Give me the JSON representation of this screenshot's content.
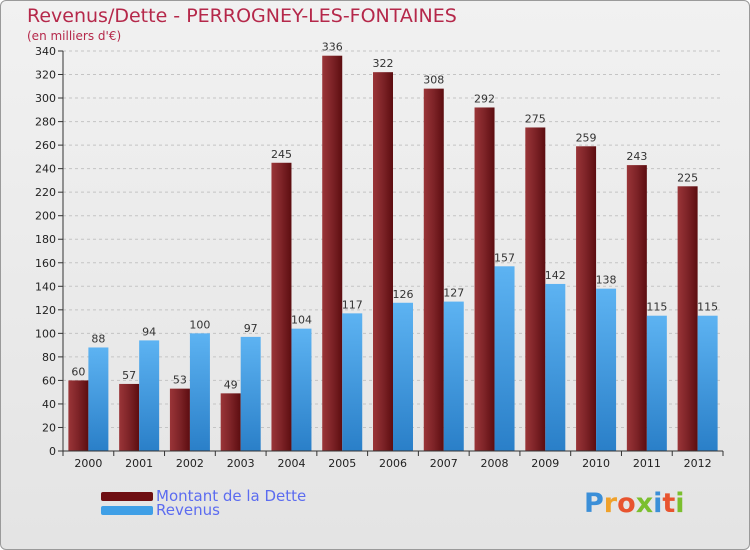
{
  "chart_data": {
    "type": "bar",
    "title": "Revenus/Dette - PERROGNEY-LES-FONTAINES",
    "subtitle": "(en milliers d'€)",
    "categories": [
      "2000",
      "2001",
      "2002",
      "2003",
      "2004",
      "2005",
      "2006",
      "2007",
      "2008",
      "2009",
      "2010",
      "2011",
      "2012"
    ],
    "series": [
      {
        "name": "Montant de la Dette",
        "color": "#7a1a1e",
        "values": [
          60,
          57,
          53,
          49,
          245,
          336,
          322,
          308,
          292,
          275,
          259,
          243,
          225
        ]
      },
      {
        "name": "Revenus",
        "color": "#3f9fe6",
        "values": [
          88,
          94,
          100,
          97,
          104,
          117,
          126,
          127,
          157,
          142,
          138,
          115,
          115
        ]
      }
    ],
    "yticks": [
      0,
      20,
      40,
      60,
      80,
      100,
      120,
      140,
      160,
      180,
      200,
      220,
      240,
      260,
      280,
      300,
      320,
      340
    ],
    "ylim": [
      0,
      340
    ],
    "grid": true,
    "legend_position": "bottom-left"
  },
  "legend": {
    "debt_label": "Montant de la Dette",
    "revenue_label": "Revenus",
    "debt_color": "#6e0e12",
    "revenue_color": "#3f9fe6"
  },
  "brand": {
    "logo_text": "Proxiti"
  }
}
